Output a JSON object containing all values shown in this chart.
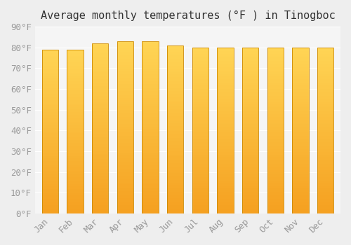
{
  "title": "Average monthly temperatures (°F ) in Tinogboc",
  "months": [
    "Jan",
    "Feb",
    "Mar",
    "Apr",
    "May",
    "Jun",
    "Jul",
    "Aug",
    "Sep",
    "Oct",
    "Nov",
    "Dec"
  ],
  "values": [
    79,
    79,
    82,
    83,
    83,
    81,
    80,
    80,
    80,
    80,
    80,
    80
  ],
  "ylim": [
    0,
    90
  ],
  "yticks": [
    0,
    10,
    20,
    30,
    40,
    50,
    60,
    70,
    80,
    90
  ],
  "bar_color_bottom": "#F5A020",
  "bar_color_top": "#FFD555",
  "bar_edge_color": "#CC8800",
  "background_color": "#EEEEEE",
  "plot_bg_color": "#F5F5F5",
  "grid_color": "#FFFFFF",
  "title_fontsize": 11,
  "tick_fontsize": 9,
  "font_family": "monospace",
  "tick_color": "#999999",
  "title_color": "#333333",
  "bar_width": 0.65,
  "num_grad": 100
}
